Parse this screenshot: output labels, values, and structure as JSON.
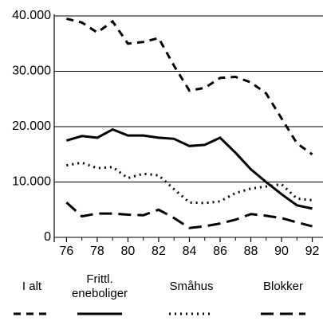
{
  "chart_data": {
    "type": "line",
    "x": [
      76,
      77,
      78,
      79,
      80,
      81,
      82,
      83,
      84,
      85,
      86,
      87,
      88,
      89,
      90,
      91,
      92
    ],
    "xlim": [
      75.2,
      92.7
    ],
    "xticks": [
      76,
      78,
      80,
      82,
      84,
      86,
      88,
      90,
      92
    ],
    "ylim": [
      0,
      40000
    ],
    "yticks": [
      0,
      {
        "value": 10000,
        "label": "10.000"
      },
      {
        "value": 20000,
        "label": "20.000"
      },
      {
        "value": 30000,
        "label": "30.000"
      },
      {
        "value": 40000,
        "label": "40.000"
      }
    ],
    "grid": true,
    "series": [
      {
        "name": "I alt",
        "color": "#000000",
        "style": "dashed",
        "values": [
          39500,
          38800,
          37000,
          39000,
          35000,
          35300,
          36000,
          31000,
          26500,
          27000,
          28800,
          29000,
          28000,
          26000,
          21500,
          17000,
          15000
        ]
      },
      {
        "name": "Frittl. eneboliger",
        "color": "#000000",
        "style": "solid",
        "values": [
          17500,
          18300,
          18000,
          19500,
          18400,
          18400,
          18000,
          17800,
          16500,
          16700,
          18000,
          15300,
          12300,
          10000,
          7800,
          5800,
          5200
        ]
      },
      {
        "name": "Småhus",
        "color": "#000000",
        "style": "dotted",
        "values": [
          13000,
          13500,
          12500,
          12700,
          10700,
          11500,
          11200,
          8700,
          6300,
          6200,
          6500,
          8000,
          8800,
          9200,
          9600,
          7000,
          6700
        ]
      },
      {
        "name": "Blokker",
        "color": "#000000",
        "style": "longdash",
        "values": [
          6300,
          3800,
          4300,
          4300,
          4100,
          4000,
          5000,
          3500,
          1700,
          2000,
          2500,
          3200,
          4200,
          3900,
          3500,
          2700,
          2000
        ]
      }
    ]
  }
}
